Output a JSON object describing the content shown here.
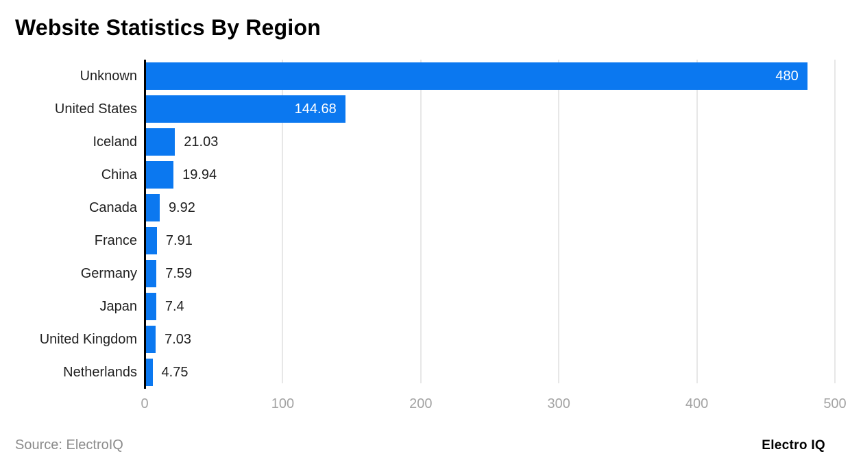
{
  "title": "Website Statistics By Region",
  "footer": {
    "source": "Source: ElectroIQ",
    "brand": "Electro IQ"
  },
  "colors": {
    "bar": "#0b78f0",
    "axis_line": "#000000",
    "gridline": "#e7e7e7",
    "tick_label": "#a3a3a3",
    "category_label": "#1f1f1f",
    "value_label_inside": "#ffffff",
    "value_label_outside": "#1f1f1f",
    "source_text": "#8b8b8b",
    "background": "#ffffff"
  },
  "chart_data": {
    "type": "bar",
    "orientation": "horizontal",
    "title": "Website Statistics By Region",
    "categories": [
      "Unknown",
      "United States",
      "Iceland",
      "China",
      "Canada",
      "France",
      "Germany",
      "Japan",
      "United Kingdom",
      "Netherlands"
    ],
    "values": [
      480,
      144.68,
      21.03,
      19.94,
      9.92,
      7.91,
      7.59,
      7.4,
      7.03,
      4.75
    ],
    "value_labels": [
      "480",
      "144.68",
      "21.03",
      "19.94",
      "9.92",
      "7.91",
      "7.59",
      "7.4",
      "7.03",
      "4.75"
    ],
    "xlabel": "",
    "ylabel": "",
    "xlim": [
      0,
      500
    ],
    "x_ticks": [
      0,
      100,
      200,
      300,
      400,
      500
    ],
    "grid": true,
    "legend": false
  }
}
